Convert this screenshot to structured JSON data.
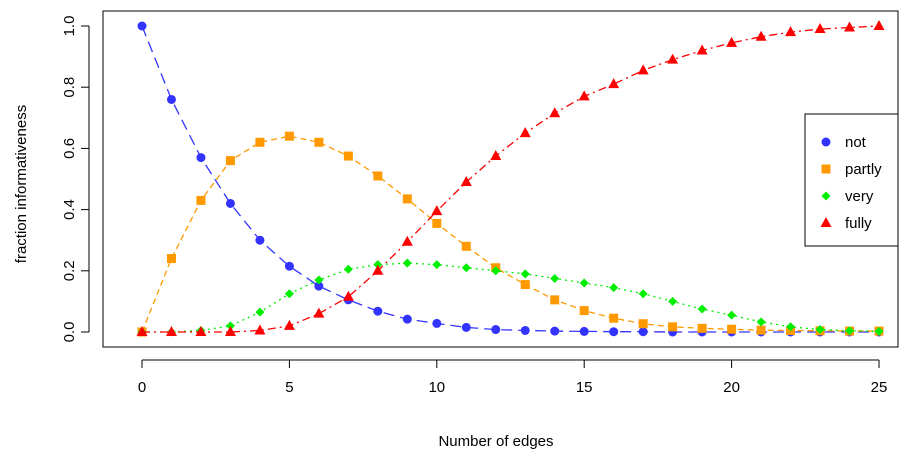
{
  "chart_data": {
    "type": "line",
    "title": "",
    "xlabel": "Number of edges",
    "ylabel": "fraction informativeness",
    "xlim": [
      0,
      25
    ],
    "ylim": [
      0,
      1
    ],
    "x_ticks": [
      "0",
      "5",
      "10",
      "15",
      "20",
      "25"
    ],
    "y_ticks": [
      "0.0",
      "0.2",
      "0.4",
      "0.6",
      "0.8",
      "1.0"
    ],
    "grid": false,
    "legend_position": "right",
    "x": [
      0,
      1,
      2,
      3,
      4,
      5,
      6,
      7,
      8,
      9,
      10,
      11,
      12,
      13,
      14,
      15,
      16,
      17,
      18,
      19,
      20,
      21,
      22,
      23,
      24,
      25
    ],
    "series": [
      {
        "name": "not",
        "color": "#3333ff",
        "marker": "circle",
        "line_style": "long-dash",
        "values": [
          1.0,
          0.76,
          0.57,
          0.42,
          0.3,
          0.215,
          0.15,
          0.105,
          0.068,
          0.042,
          0.028,
          0.015,
          0.008,
          0.005,
          0.003,
          0.002,
          0.001,
          0.001,
          0.0,
          0.0,
          0.0,
          0.0,
          0.0,
          0.0,
          0.0,
          0.0
        ]
      },
      {
        "name": "partly",
        "color": "#ff9900",
        "marker": "square",
        "line_style": "dashed",
        "values": [
          0.0,
          0.24,
          0.43,
          0.56,
          0.62,
          0.64,
          0.62,
          0.575,
          0.51,
          0.435,
          0.355,
          0.28,
          0.21,
          0.155,
          0.105,
          0.07,
          0.045,
          0.027,
          0.017,
          0.012,
          0.009,
          0.006,
          0.005,
          0.004,
          0.003,
          0.003
        ]
      },
      {
        "name": "very",
        "color": "#00ee00",
        "marker": "diamond",
        "line_style": "dotted",
        "values": [
          0.0,
          0.0,
          0.005,
          0.02,
          0.065,
          0.125,
          0.17,
          0.205,
          0.22,
          0.225,
          0.22,
          0.21,
          0.2,
          0.19,
          0.175,
          0.16,
          0.145,
          0.125,
          0.1,
          0.075,
          0.055,
          0.033,
          0.017,
          0.008,
          0.004,
          0.002
        ]
      },
      {
        "name": "fully",
        "color": "#ff0000",
        "marker": "triangle",
        "line_style": "dash-dot",
        "values": [
          0.0,
          0.0,
          0.0,
          0.0,
          0.005,
          0.02,
          0.06,
          0.115,
          0.2,
          0.295,
          0.395,
          0.49,
          0.575,
          0.65,
          0.715,
          0.77,
          0.81,
          0.855,
          0.89,
          0.92,
          0.945,
          0.965,
          0.98,
          0.99,
          0.995,
          1.0
        ]
      }
    ]
  }
}
